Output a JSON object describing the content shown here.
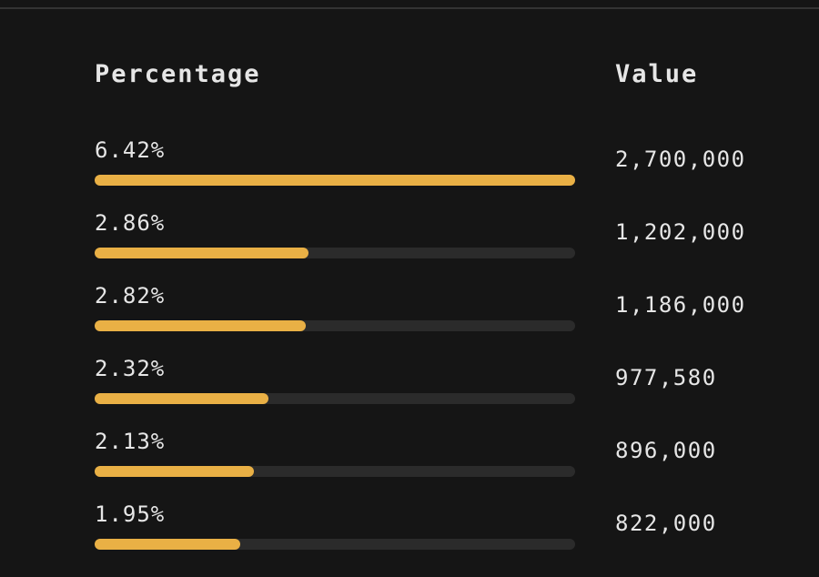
{
  "table": {
    "headers": [
      "Percentage",
      "Value"
    ],
    "bar_color": "#e9b045",
    "rows": [
      {
        "percentage": 6.42,
        "percentage_label": "6.42%",
        "value": "2,700,000"
      },
      {
        "percentage": 2.86,
        "percentage_label": "2.86%",
        "value": "1,202,000"
      },
      {
        "percentage": 2.82,
        "percentage_label": "2.82%",
        "value": "1,186,000"
      },
      {
        "percentage": 2.32,
        "percentage_label": "2.32%",
        "value": "977,580"
      },
      {
        "percentage": 2.13,
        "percentage_label": "2.13%",
        "value": "896,000"
      },
      {
        "percentage": 1.95,
        "percentage_label": "1.95%",
        "value": "822,000"
      }
    ]
  }
}
